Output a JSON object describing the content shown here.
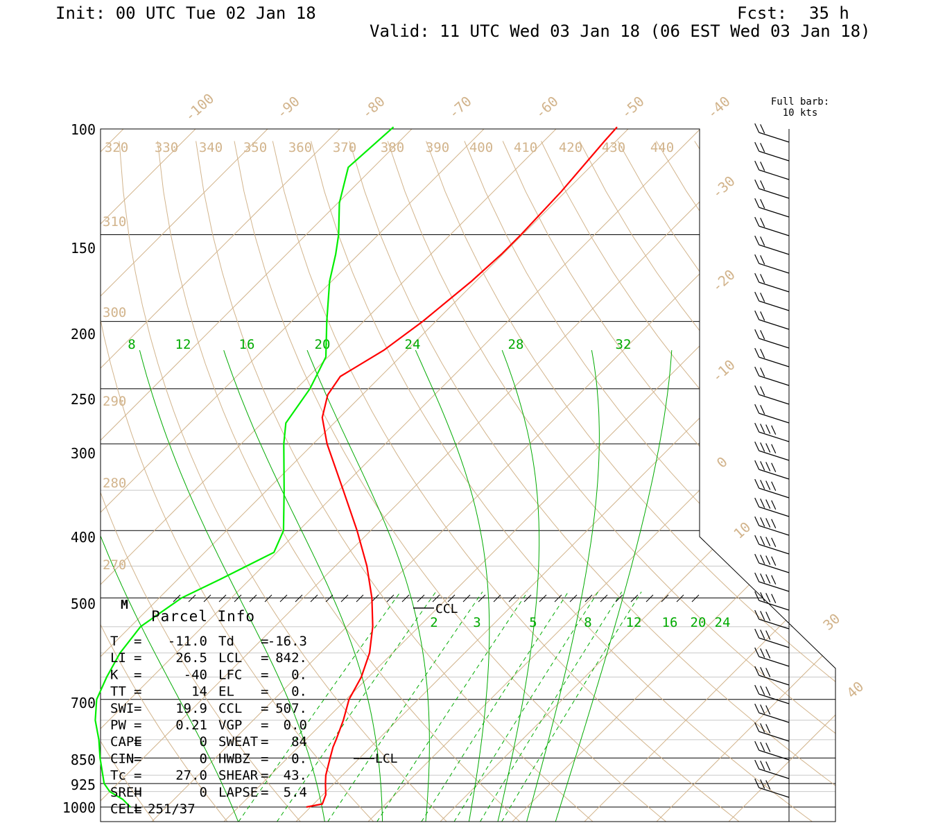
{
  "header": {
    "init": "Init: 00 UTC Tue 02 Jan 18",
    "fcst_label": "Fcst:",
    "fcst_value": "35 h",
    "valid": "Valid: 11 UTC Wed 03 Jan 18 (06 EST Wed 03 Jan 18)"
  },
  "colors": {
    "temperature": "#ff0000",
    "dewpoint": "#00ee00",
    "isotherm": "#d2b48c",
    "mixing_ratio": "#00aa00",
    "frame": "#000000"
  },
  "barb_legend": [
    "Full barb:",
    "10 kts"
  ],
  "chart_data": {
    "type": "line",
    "y_axis_pressure_ticks": [
      "100",
      "150",
      "200",
      "250",
      "300",
      "400",
      "500",
      "700",
      "850",
      "925",
      "1000"
    ],
    "isotherm_labels_upper": [
      "-100",
      "-90",
      "-80",
      "-70",
      "-60",
      "-50",
      "-40"
    ],
    "isotherm_labels_right": [
      "-30",
      "-20",
      "-10",
      "0",
      "10",
      "30",
      "40"
    ],
    "theta_labels_top": [
      "320",
      "330",
      "340",
      "350",
      "360",
      "370",
      "380",
      "390",
      "400",
      "410",
      "420",
      "430",
      "440"
    ],
    "theta_labels_left": [
      "310",
      "300",
      "290",
      "280",
      "270"
    ],
    "mixing_ratio_labels_upper": [
      "8",
      "12",
      "16",
      "20",
      "24",
      "28",
      "32"
    ],
    "mixing_ratio_labels_lower": [
      "2",
      "3",
      "5",
      "8",
      "12",
      "16",
      "20",
      "24"
    ],
    "level_markers": [
      "M",
      "CCL",
      "LCL"
    ],
    "series": [
      {
        "name": "T",
        "points": [
          [
            1000,
            -0.6
          ],
          [
            990,
            1.2
          ],
          [
            960,
            0.4
          ],
          [
            925,
            -1.2
          ],
          [
            900,
            -2.3
          ],
          [
            850,
            -4.1
          ],
          [
            820,
            -5.2
          ],
          [
            800,
            -5.8
          ],
          [
            750,
            -7.5
          ],
          [
            700,
            -9.6
          ],
          [
            650,
            -11.0
          ],
          [
            600,
            -13.2
          ],
          [
            550,
            -16.4
          ],
          [
            500,
            -20.5
          ],
          [
            450,
            -25.6
          ],
          [
            400,
            -31.9
          ],
          [
            350,
            -39.4
          ],
          [
            300,
            -48.1
          ],
          [
            275,
            -52.4
          ],
          [
            255,
            -54.8
          ],
          [
            240,
            -55.6
          ],
          [
            220,
            -53.2
          ],
          [
            200,
            -51.8
          ],
          [
            175,
            -50.6
          ],
          [
            160,
            -50.2
          ],
          [
            150,
            -50.2
          ],
          [
            130,
            -50.6
          ],
          [
            110,
            -51.6
          ],
          [
            105,
            -51.8
          ]
        ]
      },
      {
        "name": "Td",
        "points": [
          [
            1000,
            -25.0
          ],
          [
            975,
            -27.1
          ],
          [
            950,
            -30.0
          ],
          [
            925,
            -31.9
          ],
          [
            850,
            -36.0
          ],
          [
            800,
            -38.7
          ],
          [
            750,
            -41.9
          ],
          [
            700,
            -44.6
          ],
          [
            650,
            -46.3
          ],
          [
            600,
            -47.8
          ],
          [
            550,
            -48.6
          ],
          [
            500,
            -46.9
          ],
          [
            470,
            -44.1
          ],
          [
            430,
            -40.4
          ],
          [
            400,
            -42.1
          ],
          [
            350,
            -47.6
          ],
          [
            300,
            -54.1
          ],
          [
            280,
            -56.7
          ],
          [
            250,
            -58.1
          ],
          [
            225,
            -60.3
          ],
          [
            200,
            -65.1
          ],
          [
            175,
            -70.3
          ],
          [
            160,
            -73.2
          ],
          [
            150,
            -75.5
          ],
          [
            135,
            -79.8
          ],
          [
            120,
            -83.5
          ],
          [
            105,
            -82.8
          ]
        ]
      }
    ],
    "parcel_info": {
      "title": "Parcel Info",
      "rows": [
        [
          "T",
          "=",
          "-11.0",
          "Td",
          "=",
          "-16.3"
        ],
        [
          "LI",
          "=",
          "26.5",
          "LCL",
          "=",
          "842."
        ],
        [
          "K",
          "=",
          "-40",
          "LFC",
          "=",
          "0."
        ],
        [
          "TT",
          "=",
          "14",
          "EL",
          "=",
          "0."
        ],
        [
          "SWI",
          "=",
          "19.9",
          "CCL",
          "=",
          "507."
        ],
        [
          "PW",
          "=",
          "0.21",
          "VGP",
          "=",
          "0.0"
        ],
        [
          "CAPE",
          "=",
          "0",
          "SWEAT",
          "=",
          "84"
        ],
        [
          "CIN",
          "=",
          "0",
          "HWBZ",
          "=",
          "0."
        ],
        [
          "Tc",
          "=",
          "27.0",
          "SHEAR",
          "=",
          "43."
        ],
        [
          "SREH",
          "=",
          "0",
          "LAPSE",
          "=",
          "5.4"
        ],
        [
          "CELL",
          "=",
          "251/37",
          "",
          "",
          ""
        ]
      ]
    }
  }
}
